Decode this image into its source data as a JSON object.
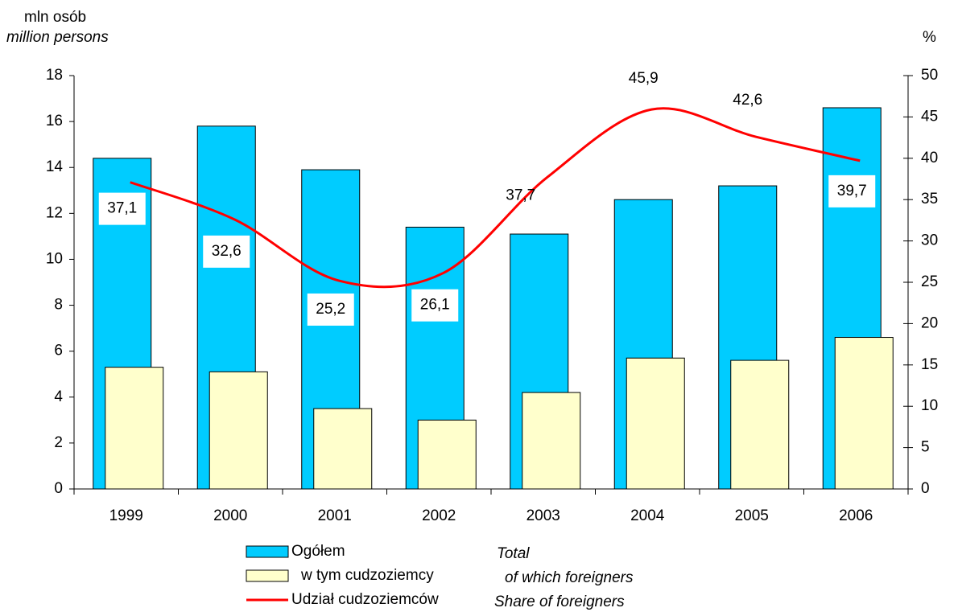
{
  "chart_data": {
    "type": "bar",
    "y_label": "mln osób",
    "y_label_en": "million persons",
    "y2_label": "%",
    "categories": [
      "1999",
      "2000",
      "2001",
      "2002",
      "2003",
      "2004",
      "2005",
      "2006"
    ],
    "series": [
      {
        "name": "Ogółem",
        "name_en": "Total",
        "color": "#00ccff",
        "values": [
          14.4,
          15.8,
          13.9,
          11.4,
          11.1,
          12.6,
          13.2,
          16.6
        ]
      },
      {
        "name": "w tym cudzoziemcy",
        "name_en": "of which foreigners",
        "color": "#ffffcc",
        "values": [
          5.3,
          5.1,
          3.5,
          3.0,
          4.2,
          5.7,
          5.6,
          6.6
        ]
      },
      {
        "name": "Udział cudzoziemców",
        "name_en": "Share of foreigners",
        "color": "#ff0000",
        "axis": "y2",
        "type": "line",
        "values": [
          37.1,
          32.6,
          25.2,
          26.1,
          37.7,
          45.9,
          42.6,
          39.7
        ],
        "value_labels": [
          "37,1",
          "32,6",
          "25,2",
          "26,1",
          "37,7",
          "45,9",
          "42,6",
          "39,7"
        ]
      }
    ],
    "ylim": [
      0,
      18
    ],
    "yticks": [
      0,
      2,
      4,
      6,
      8,
      10,
      12,
      14,
      16,
      18
    ],
    "y2lim": [
      0,
      50
    ],
    "y2ticks": [
      0,
      5,
      10,
      15,
      20,
      25,
      30,
      35,
      40,
      45,
      50
    ]
  }
}
